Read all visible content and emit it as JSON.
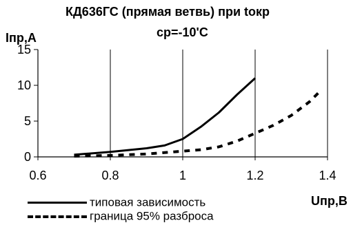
{
  "chart_data": {
    "type": "line",
    "title_line1": "КД636ГС (прямая ветвь) при tокр",
    "title_line2": "ср=-10'С",
    "ylabel": "Iпр,А",
    "xlabel": "Uпр,В",
    "xlim": [
      0.6,
      1.4
    ],
    "ylim": [
      0,
      15
    ],
    "xticks": [
      "0.6",
      "0.8",
      "1",
      "1.2",
      "1.4"
    ],
    "yticks": [
      "0",
      "5",
      "10",
      "15"
    ],
    "grid": "vertical",
    "legend_position": "bottom",
    "series": [
      {
        "name": "типовая зависимость",
        "style": "solid",
        "x": [
          0.7,
          0.8,
          0.9,
          0.95,
          1.0,
          1.05,
          1.1,
          1.15,
          1.2
        ],
        "y": [
          0.3,
          0.7,
          1.2,
          1.6,
          2.5,
          4.2,
          6.2,
          8.7,
          11.0
        ]
      },
      {
        "name": "граница 95% разброса",
        "style": "dashed",
        "x": [
          0.7,
          0.8,
          0.9,
          1.0,
          1.05,
          1.1,
          1.15,
          1.2,
          1.25,
          1.3,
          1.35,
          1.38
        ],
        "y": [
          0.1,
          0.2,
          0.4,
          0.8,
          1.0,
          1.4,
          2.2,
          3.3,
          4.4,
          5.8,
          7.7,
          9.2
        ]
      }
    ]
  }
}
